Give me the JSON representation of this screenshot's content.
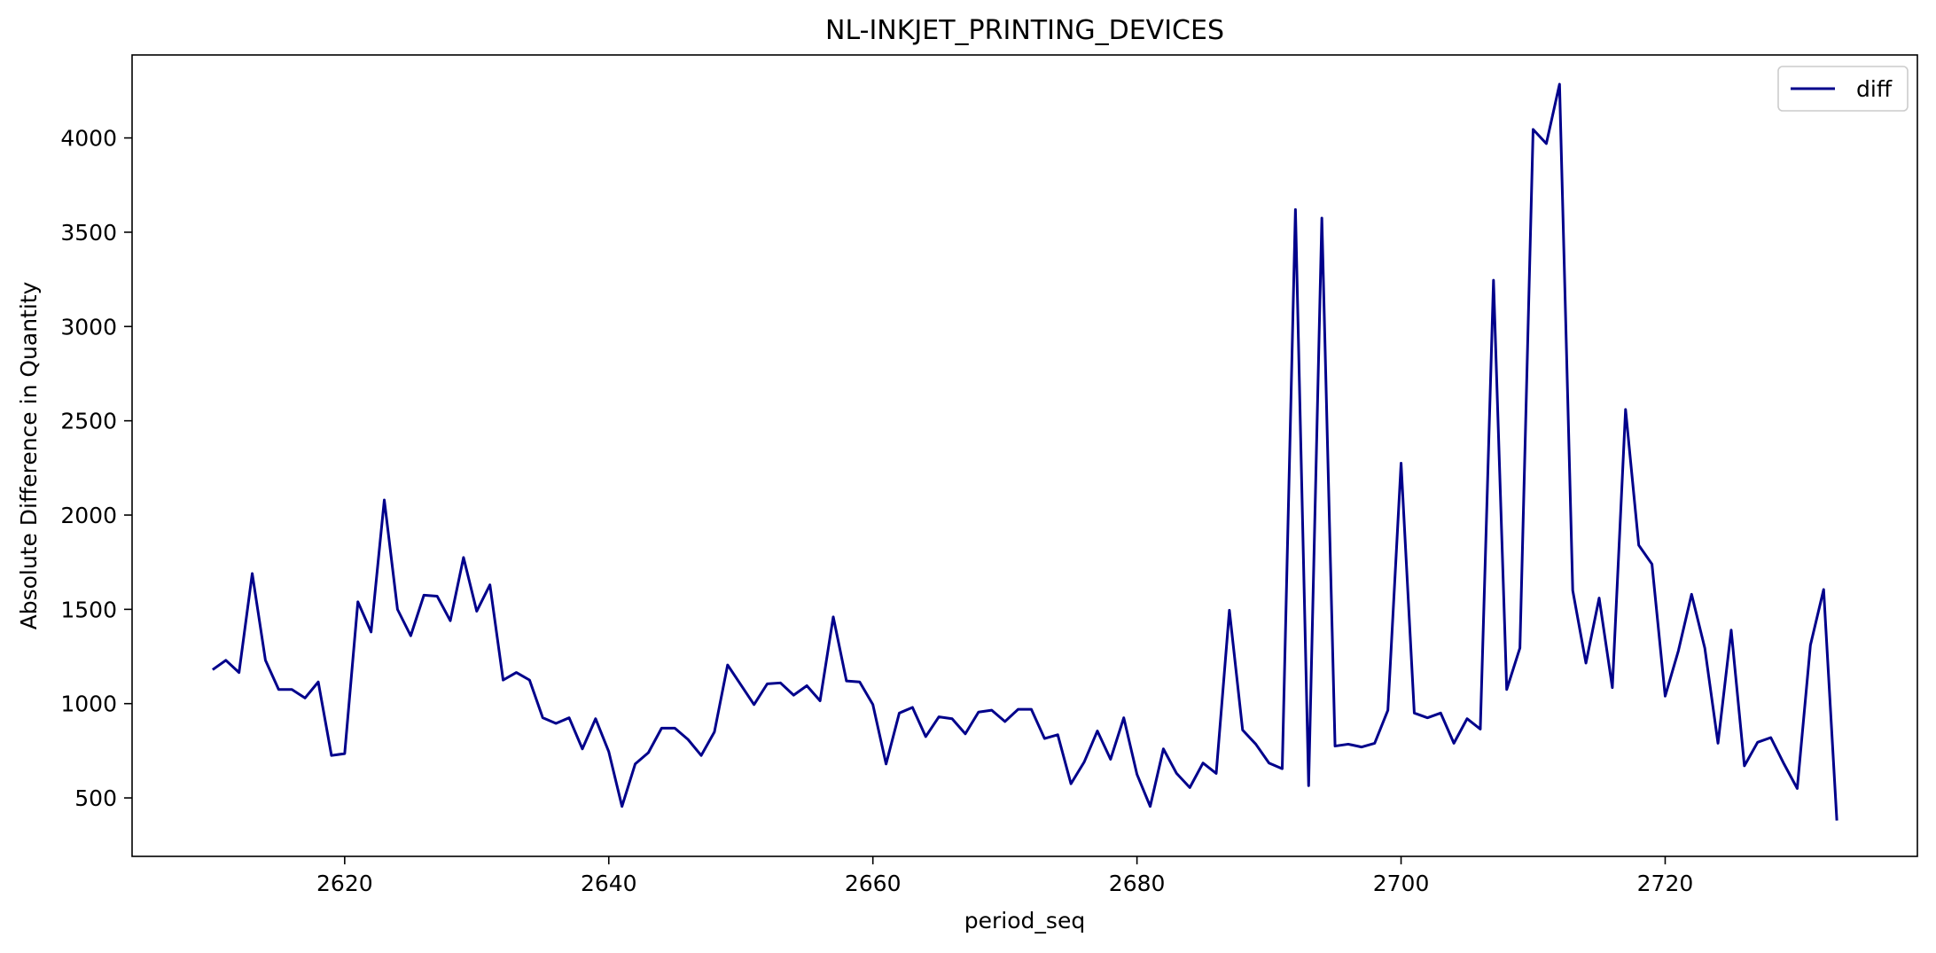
{
  "chart_data": {
    "type": "line",
    "title": "NL-INKJET_PRINTING_DEVICES",
    "xlabel": "period_seq",
    "ylabel": "Absolute Difference in Quantity",
    "xlim": [
      2603.9,
      2739.1
    ],
    "ylim": [
      190,
      4440
    ],
    "xticks": [
      2620,
      2640,
      2660,
      2680,
      2700,
      2720
    ],
    "yticks": [
      500,
      1000,
      1500,
      2000,
      2500,
      3000,
      3500,
      4000
    ],
    "grid": false,
    "legend_position": "top-right",
    "series": [
      {
        "name": "diff",
        "color": "#00008B",
        "x": [
          2610,
          2611,
          2612,
          2613,
          2614,
          2615,
          2616,
          2617,
          2618,
          2619,
          2620,
          2621,
          2622,
          2623,
          2624,
          2625,
          2626,
          2627,
          2628,
          2629,
          2630,
          2631,
          2632,
          2633,
          2634,
          2635,
          2636,
          2637,
          2638,
          2639,
          2640,
          2641,
          2642,
          2643,
          2644,
          2645,
          2646,
          2647,
          2648,
          2649,
          2650,
          2651,
          2652,
          2653,
          2654,
          2655,
          2656,
          2657,
          2658,
          2659,
          2660,
          2661,
          2662,
          2663,
          2664,
          2665,
          2666,
          2667,
          2668,
          2669,
          2670,
          2671,
          2672,
          2673,
          2674,
          2675,
          2676,
          2677,
          2678,
          2679,
          2680,
          2681,
          2682,
          2683,
          2684,
          2685,
          2686,
          2687,
          2688,
          2689,
          2690,
          2691,
          2692,
          2693,
          2694,
          2695,
          2696,
          2697,
          2698,
          2699,
          2700,
          2701,
          2702,
          2703,
          2704,
          2705,
          2706,
          2707,
          2708,
          2709,
          2710,
          2711,
          2712,
          2713,
          2714,
          2715,
          2716,
          2717,
          2718,
          2719,
          2720,
          2721,
          2722,
          2723,
          2724,
          2725,
          2726,
          2727,
          2728,
          2729,
          2730,
          2731,
          2732,
          2733
        ],
        "y": [
          1180,
          1230,
          1165,
          1690,
          1230,
          1075,
          1075,
          1030,
          1115,
          725,
          735,
          1540,
          1380,
          2080,
          1500,
          1360,
          1575,
          1570,
          1440,
          1775,
          1490,
          1630,
          1125,
          1165,
          1125,
          925,
          895,
          925,
          760,
          920,
          745,
          455,
          680,
          740,
          870,
          870,
          810,
          725,
          850,
          1205,
          1100,
          995,
          1105,
          1110,
          1045,
          1095,
          1015,
          1460,
          1120,
          1115,
          995,
          680,
          950,
          980,
          825,
          930,
          920,
          840,
          955,
          965,
          905,
          970,
          970,
          815,
          835,
          575,
          690,
          855,
          705,
          925,
          625,
          455,
          760,
          630,
          555,
          685,
          630,
          1495,
          860,
          785,
          685,
          655,
          3620,
          565,
          3575,
          775,
          785,
          770,
          790,
          965,
          2275,
          950,
          925,
          950,
          790,
          920,
          865,
          3245,
          1075,
          1295,
          4045,
          3970,
          4285,
          1600,
          1215,
          1560,
          1085,
          2560,
          1840,
          1740,
          1040,
          1280,
          1580,
          1295,
          790,
          1390,
          670,
          795,
          820,
          680,
          550,
          1310,
          1605,
          380
        ]
      }
    ]
  }
}
